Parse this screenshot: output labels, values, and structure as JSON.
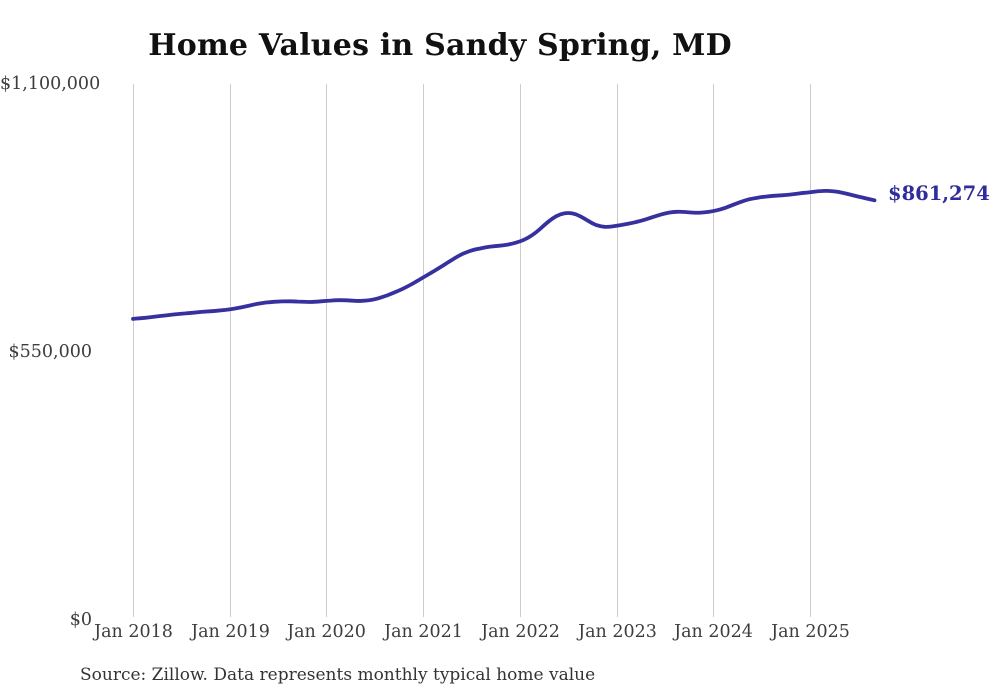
{
  "title": "Home Values in Sandy Spring, MD",
  "source": {
    "text": "Source: Zillow. Data represents monthly typical home value"
  },
  "latest_value_label": "$861,274",
  "colors": {
    "line": "#37319f",
    "latest_label": "#312c9c",
    "gridline": "#cccccc",
    "tick_text": "#3d3d3d",
    "title_text": "#111111"
  },
  "chart_data": {
    "type": "line",
    "title": "Home Values in Sandy Spring, MD",
    "series_name": "Monthly typical home value",
    "x_unit": "month",
    "x_start": "Jan 2018",
    "x_end": "Sep 2025",
    "x_tick_labels": [
      "Jan 2018",
      "Jan 2019",
      "Jan 2020",
      "Jan 2021",
      "Jan 2022",
      "Jan 2023",
      "Jan 2024",
      "Jan 2025"
    ],
    "y_tick_labels": [
      "$0",
      "$550,000",
      "$1,100,000"
    ],
    "ylim": [
      0,
      1100000
    ],
    "grid": "vertical-only",
    "legend": "none",
    "end_label": "$861,274",
    "final_value": 861274,
    "values": [
      618000,
      619500,
      621000,
      623000,
      625000,
      627000,
      628500,
      630000,
      631500,
      633000,
      634000,
      635500,
      637500,
      640000,
      643500,
      647500,
      650500,
      652500,
      653500,
      654000,
      654000,
      653000,
      652500,
      653500,
      655000,
      656000,
      656500,
      655500,
      654500,
      655500,
      658000,
      663000,
      669000,
      676000,
      684000,
      693000,
      703000,
      712500,
      722500,
      733000,
      743500,
      752500,
      758500,
      762500,
      765500,
      767500,
      769000,
      772000,
      776500,
      784000,
      795000,
      810000,
      824000,
      833000,
      836000,
      833000,
      824000,
      813500,
      807500,
      806500,
      809000,
      812000,
      815000,
      819000,
      824000,
      829500,
      834500,
      837500,
      838000,
      836500,
      835500,
      836500,
      839000,
      843000,
      849000,
      855500,
      861500,
      865500,
      868000,
      870000,
      871000,
      872000,
      874000,
      876000,
      878000,
      880000,
      881000,
      880000,
      877000,
      873000,
      869000,
      865000,
      861274
    ]
  }
}
